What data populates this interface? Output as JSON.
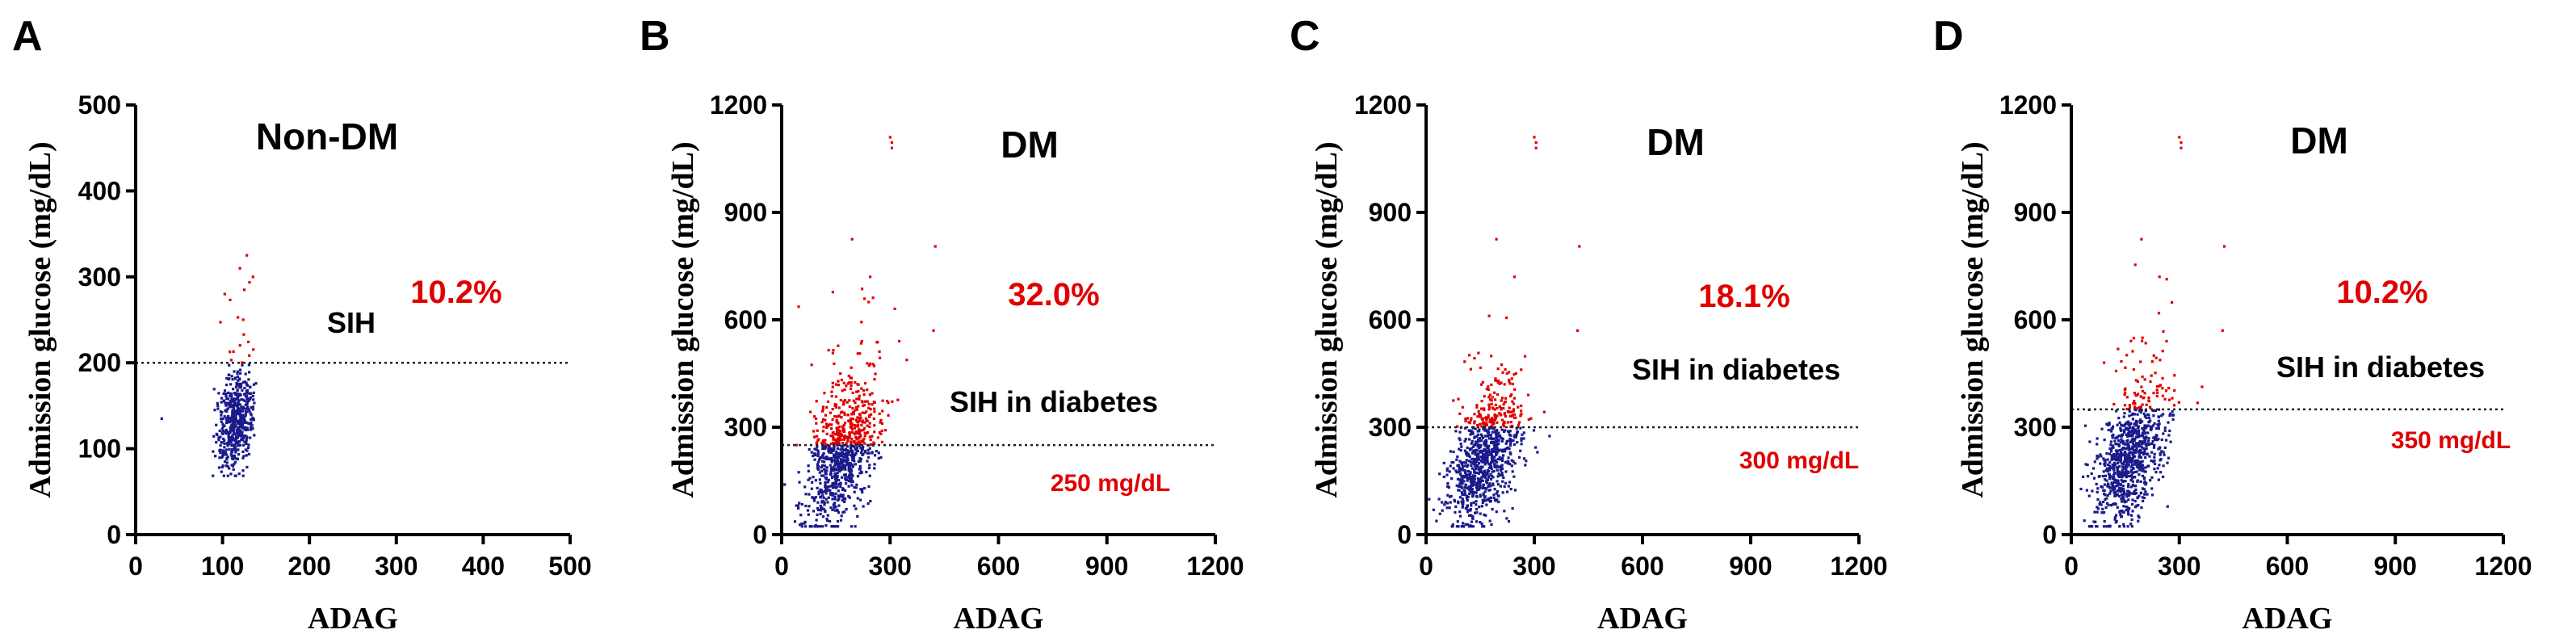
{
  "colors": {
    "below": "#1a1a8c",
    "above": "#e00000",
    "axis": "#000000"
  },
  "chart_data": [
    {
      "type": "scatter",
      "panel_label": "A",
      "group": "Non-DM",
      "region_label": "SIH",
      "percent_label": "10.2%",
      "threshold_label": "",
      "threshold": 200,
      "xlabel": "ADAG",
      "ylabel": "Admission glucose (mg/dL)",
      "xlim": [
        0,
        500
      ],
      "ylim": [
        0,
        500
      ],
      "xticks": [
        "0",
        "100",
        "200",
        "300",
        "400",
        "500"
      ],
      "yticks": [
        "0",
        "100",
        "200",
        "300",
        "400",
        "500"
      ],
      "cloud": {
        "x_center": 115,
        "x_spread": 10,
        "y_center": 130,
        "y_spread": 28,
        "n": 550
      },
      "outliers": [
        [
          30,
          135
        ],
        [
          128,
          325
        ],
        [
          120,
          310
        ],
        [
          135,
          300
        ],
        [
          125,
          285
        ]
      ]
    },
    {
      "type": "scatter",
      "panel_label": "B",
      "group": "DM",
      "region_label": "SIH in diabetes",
      "percent_label": "32.0%",
      "threshold_label": "250 mg/dL",
      "threshold": 250,
      "xlabel": "ADAG",
      "ylabel": "Admission glucose (mg/dL)",
      "xlim": [
        0,
        1200
      ],
      "ylim": [
        0,
        1200
      ],
      "xticks": [
        "0",
        "300",
        "600",
        "900",
        "1200"
      ],
      "yticks": [
        "0",
        "300",
        "600",
        "900",
        "1200"
      ],
      "cloud": {
        "x_center": 160,
        "x_spread": 50,
        "y_center": 210,
        "y_spread": 85,
        "n": 900
      },
      "outliers": [
        [
          305,
          1095
        ],
        [
          305,
          1080
        ],
        [
          300,
          1110
        ],
        [
          195,
          825
        ],
        [
          425,
          805
        ],
        [
          245,
          720
        ],
        [
          420,
          570
        ]
      ]
    },
    {
      "type": "scatter",
      "panel_label": "C",
      "group": "DM",
      "region_label": "SIH in diabetes",
      "percent_label": "18.1%",
      "threshold_label": "300 mg/dL",
      "threshold": 300,
      "xlabel": "ADAG",
      "ylabel": "Admission glucose (mg/dL)",
      "xlim": [
        0,
        1200
      ],
      "ylim": [
        0,
        1200
      ],
      "xticks": [
        "0",
        "300",
        "600",
        "900",
        "1200"
      ],
      "yticks": [
        "0",
        "300",
        "600",
        "900",
        "1200"
      ],
      "cloud": {
        "x_center": 160,
        "x_spread": 50,
        "y_center": 210,
        "y_spread": 85,
        "n": 900
      },
      "outliers": [
        [
          305,
          1095
        ],
        [
          305,
          1080
        ],
        [
          300,
          1110
        ],
        [
          195,
          825
        ],
        [
          425,
          805
        ],
        [
          245,
          720
        ],
        [
          420,
          570
        ]
      ]
    },
    {
      "type": "scatter",
      "panel_label": "D",
      "group": "DM",
      "region_label": "SIH in diabetes",
      "percent_label": "10.2%",
      "threshold_label": "350 mg/dL",
      "threshold": 350,
      "xlabel": "ADAG",
      "ylabel": "Admission glucose (mg/dL)",
      "xlim": [
        0,
        1200
      ],
      "ylim": [
        0,
        1200
      ],
      "xticks": [
        "0",
        "300",
        "600",
        "900",
        "1200"
      ],
      "yticks": [
        "0",
        "300",
        "600",
        "900",
        "1200"
      ],
      "cloud": {
        "x_center": 160,
        "x_spread": 50,
        "y_center": 210,
        "y_spread": 85,
        "n": 900
      },
      "outliers": [
        [
          305,
          1095
        ],
        [
          305,
          1080
        ],
        [
          300,
          1110
        ],
        [
          195,
          825
        ],
        [
          425,
          805
        ],
        [
          245,
          720
        ],
        [
          420,
          570
        ]
      ]
    }
  ]
}
